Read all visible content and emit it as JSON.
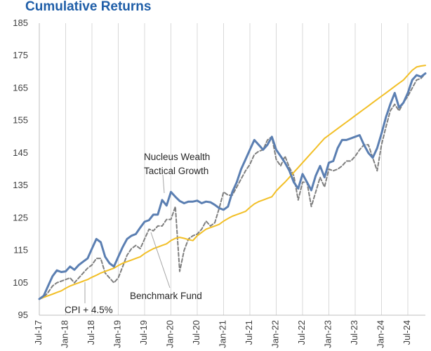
{
  "chart_data": {
    "type": "line",
    "title": "Cumulative Returns",
    "xlabel": "",
    "ylabel": "",
    "ylim": [
      95,
      185
    ],
    "yticks": [
      95,
      105,
      115,
      125,
      135,
      145,
      155,
      165,
      175,
      185
    ],
    "xlim": [
      "2017-07",
      "2024-11"
    ],
    "xtick_labels": [
      "Jul-17",
      "Jan-18",
      "Jul-18",
      "Jan-19",
      "Jul-19",
      "Jan-20",
      "Jul-20",
      "Jan-21",
      "Jul-21",
      "Jan-22",
      "Jul-22",
      "Jan-23",
      "Jul-23",
      "Jan-24",
      "Jul-24"
    ],
    "grid": "vertical gridlines at each x tick",
    "legend": "none; series named by callout annotations",
    "series": [
      {
        "name": "Nucleus Wealth Tactical Growth",
        "color": "#5b7fb2",
        "style": "solid-thick",
        "x": [
          "2017-07",
          "2017-08",
          "2017-09",
          "2017-10",
          "2017-11",
          "2017-12",
          "2018-01",
          "2018-02",
          "2018-03",
          "2018-04",
          "2018-05",
          "2018-06",
          "2018-07",
          "2018-08",
          "2018-09",
          "2018-10",
          "2018-11",
          "2018-12",
          "2019-01",
          "2019-02",
          "2019-03",
          "2019-04",
          "2019-05",
          "2019-06",
          "2019-07",
          "2019-08",
          "2019-09",
          "2019-10",
          "2019-11",
          "2019-12",
          "2020-01",
          "2020-02",
          "2020-03",
          "2020-04",
          "2020-05",
          "2020-06",
          "2020-07",
          "2020-08",
          "2020-09",
          "2020-10",
          "2020-11",
          "2020-12",
          "2021-01",
          "2021-02",
          "2021-03",
          "2021-04",
          "2021-05",
          "2021-06",
          "2021-07",
          "2021-08",
          "2021-09",
          "2021-10",
          "2021-11",
          "2021-12",
          "2022-01",
          "2022-02",
          "2022-03",
          "2022-04",
          "2022-05",
          "2022-06",
          "2022-07",
          "2022-08",
          "2022-09",
          "2022-10",
          "2022-11",
          "2022-12",
          "2023-01",
          "2023-02",
          "2023-03",
          "2023-04",
          "2023-05",
          "2023-06",
          "2023-07",
          "2023-08",
          "2023-09",
          "2023-10",
          "2023-11",
          "2023-12",
          "2024-01",
          "2024-02",
          "2024-03",
          "2024-04",
          "2024-05",
          "2024-06",
          "2024-07",
          "2024-08",
          "2024-09",
          "2024-10",
          "2024-11"
        ],
        "values": [
          100,
          101,
          104,
          107,
          108.8,
          108.3,
          108.5,
          110,
          109,
          110.5,
          111.5,
          112.5,
          115.5,
          118.5,
          117.5,
          113,
          111,
          110,
          113,
          116,
          118.5,
          119.5,
          120,
          122,
          123.8,
          124.3,
          126,
          126,
          130.5,
          128.8,
          133,
          131.5,
          130.2,
          129.5,
          130,
          130,
          130.3,
          129.5,
          130,
          129.8,
          129,
          128,
          127.5,
          128.5,
          133,
          136,
          140,
          143,
          146,
          149,
          147.5,
          146,
          147.5,
          150,
          146,
          144,
          142,
          139.5,
          136,
          134,
          138.5,
          136,
          133.5,
          138,
          141,
          137.5,
          142,
          142.5,
          146.5,
          149,
          149,
          149.5,
          150,
          150.5,
          147.5,
          145,
          143.5,
          146.5,
          151,
          156,
          160,
          163.5,
          159,
          160.5,
          163.5,
          167.5,
          169,
          168.5,
          169.5
        ]
      },
      {
        "name": "Benchmark Fund",
        "color": "#7f7f7f",
        "style": "dashed",
        "x": [
          "2017-07",
          "2017-08",
          "2017-09",
          "2017-10",
          "2017-11",
          "2017-12",
          "2018-01",
          "2018-02",
          "2018-03",
          "2018-04",
          "2018-05",
          "2018-06",
          "2018-07",
          "2018-08",
          "2018-09",
          "2018-10",
          "2018-11",
          "2018-12",
          "2019-01",
          "2019-02",
          "2019-03",
          "2019-04",
          "2019-05",
          "2019-06",
          "2019-07",
          "2019-08",
          "2019-09",
          "2019-10",
          "2019-11",
          "2019-12",
          "2020-01",
          "2020-02",
          "2020-03",
          "2020-04",
          "2020-05",
          "2020-06",
          "2020-07",
          "2020-08",
          "2020-09",
          "2020-10",
          "2020-11",
          "2020-12",
          "2021-01",
          "2021-02",
          "2021-03",
          "2021-04",
          "2021-05",
          "2021-06",
          "2021-07",
          "2021-08",
          "2021-09",
          "2021-10",
          "2021-11",
          "2021-12",
          "2022-01",
          "2022-02",
          "2022-03",
          "2022-04",
          "2022-05",
          "2022-06",
          "2022-07",
          "2022-08",
          "2022-09",
          "2022-10",
          "2022-11",
          "2022-12",
          "2023-01",
          "2023-02",
          "2023-03",
          "2023-04",
          "2023-05",
          "2023-06",
          "2023-07",
          "2023-08",
          "2023-09",
          "2023-10",
          "2023-11",
          "2023-12",
          "2024-01",
          "2024-02",
          "2024-03",
          "2024-04",
          "2024-05",
          "2024-06",
          "2024-07",
          "2024-08",
          "2024-09",
          "2024-10",
          "2024-11"
        ],
        "values": [
          100,
          100.5,
          102,
          104,
          105,
          105.5,
          106,
          106.5,
          105,
          106.5,
          108,
          109.5,
          110.5,
          112.5,
          112.5,
          108,
          106.5,
          105,
          106.5,
          110,
          113.5,
          115.5,
          116.5,
          115.5,
          118.5,
          121.5,
          121,
          122.5,
          122.5,
          124.5,
          124.5,
          128.5,
          108.5,
          115,
          118.5,
          119.5,
          120,
          121.5,
          124,
          122.5,
          123.5,
          128,
          133,
          132,
          132,
          134.5,
          137,
          139.5,
          141.5,
          144.5,
          145.5,
          146,
          149,
          150,
          143,
          141,
          144,
          140.5,
          138,
          130.5,
          136,
          136,
          128.5,
          133,
          137.5,
          134.5,
          140,
          139.5,
          140,
          141,
          142.5,
          142.5,
          144,
          146,
          147.5,
          147.5,
          143.5,
          139.5,
          147.5,
          153,
          158,
          160,
          158,
          160.5,
          162.5,
          165,
          167.5,
          168,
          169.5
        ]
      },
      {
        "name": "CPI + 4.5%",
        "color": "#f2bf26",
        "style": "solid",
        "x": [
          "2017-07",
          "2017-08",
          "2017-09",
          "2017-10",
          "2017-11",
          "2017-12",
          "2018-01",
          "2018-02",
          "2018-03",
          "2018-04",
          "2018-05",
          "2018-06",
          "2018-07",
          "2018-08",
          "2018-09",
          "2018-10",
          "2018-11",
          "2018-12",
          "2019-01",
          "2019-02",
          "2019-03",
          "2019-04",
          "2019-05",
          "2019-06",
          "2019-07",
          "2019-08",
          "2019-09",
          "2019-10",
          "2019-11",
          "2019-12",
          "2020-01",
          "2020-02",
          "2020-03",
          "2020-04",
          "2020-05",
          "2020-06",
          "2020-07",
          "2020-08",
          "2020-09",
          "2020-10",
          "2020-11",
          "2020-12",
          "2021-01",
          "2021-02",
          "2021-03",
          "2021-04",
          "2021-05",
          "2021-06",
          "2021-07",
          "2021-08",
          "2021-09",
          "2021-10",
          "2021-11",
          "2021-12",
          "2022-01",
          "2022-02",
          "2022-03",
          "2022-04",
          "2022-05",
          "2022-06",
          "2022-07",
          "2022-08",
          "2022-09",
          "2022-10",
          "2022-11",
          "2022-12",
          "2023-01",
          "2023-02",
          "2023-03",
          "2023-04",
          "2023-05",
          "2023-06",
          "2023-07",
          "2023-08",
          "2023-09",
          "2023-10",
          "2023-11",
          "2023-12",
          "2024-01",
          "2024-02",
          "2024-03",
          "2024-04",
          "2024-05",
          "2024-06",
          "2024-07",
          "2024-08",
          "2024-09",
          "2024-10",
          "2024-11"
        ],
        "values": [
          100,
          100.5,
          101,
          101.5,
          102,
          102.5,
          103.3,
          104,
          104.5,
          105,
          105.5,
          106,
          106.7,
          107.3,
          108,
          108.5,
          109,
          109.5,
          110.3,
          111,
          111.5,
          112,
          112.5,
          113,
          114,
          114.8,
          115.5,
          116,
          116.5,
          117,
          118,
          118.7,
          119,
          118.7,
          118.3,
          118,
          119.5,
          120.5,
          121.5,
          122,
          122.5,
          123,
          124,
          124.8,
          125.5,
          126,
          126.5,
          127,
          128.2,
          129.3,
          130,
          130.5,
          131,
          131.5,
          133.3,
          134.7,
          136,
          137.5,
          139,
          140.5,
          142,
          143.5,
          145,
          146.5,
          148,
          149.5,
          150.5,
          151.5,
          152.5,
          153.5,
          154.5,
          155.5,
          156.5,
          157.5,
          158.5,
          159.5,
          160.5,
          161.5,
          162.5,
          163.5,
          164.5,
          165.5,
          166.5,
          167.5,
          169,
          170.5,
          171.5,
          171.8,
          172
        ]
      }
    ],
    "annotations": [
      {
        "lines": [
          "Nucleus Wealth",
          "Tactical Growth"
        ],
        "points_to_series": 0
      },
      {
        "lines": [
          "Benchmark Fund"
        ],
        "points_to_series": 1
      },
      {
        "lines": [
          "CPI + 4.5%"
        ],
        "points_to_series": 2
      }
    ]
  }
}
